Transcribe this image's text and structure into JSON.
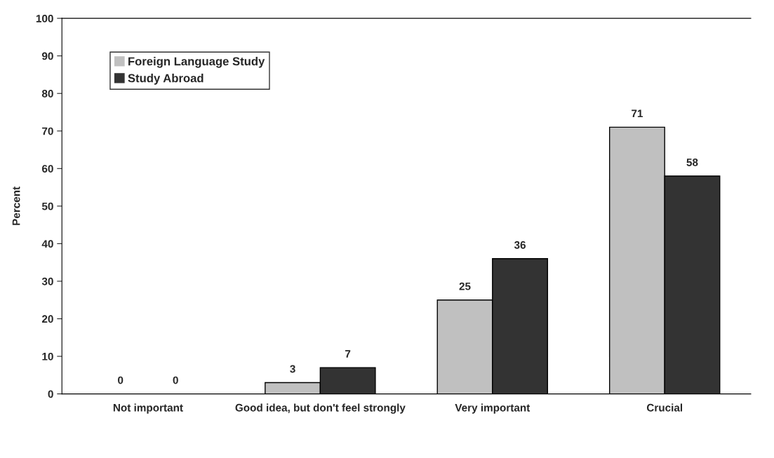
{
  "chart_data": {
    "type": "bar",
    "ylabel": "Percent",
    "categories": [
      "Not important",
      "Good idea, but don't feel strongly",
      "Very important",
      "Crucial"
    ],
    "series": [
      {
        "name": "Foreign Language Study",
        "color": "#c0c0c0",
        "values": [
          0,
          3,
          25,
          71
        ]
      },
      {
        "name": "Study Abroad",
        "color": "#333333",
        "values": [
          0,
          7,
          36,
          58
        ]
      }
    ],
    "ylim": [
      0,
      100
    ],
    "yticks": [
      0,
      10,
      20,
      30,
      40,
      50,
      60,
      70,
      80,
      90,
      100
    ],
    "data_labels": true,
    "legend": "top left",
    "grid": false
  }
}
